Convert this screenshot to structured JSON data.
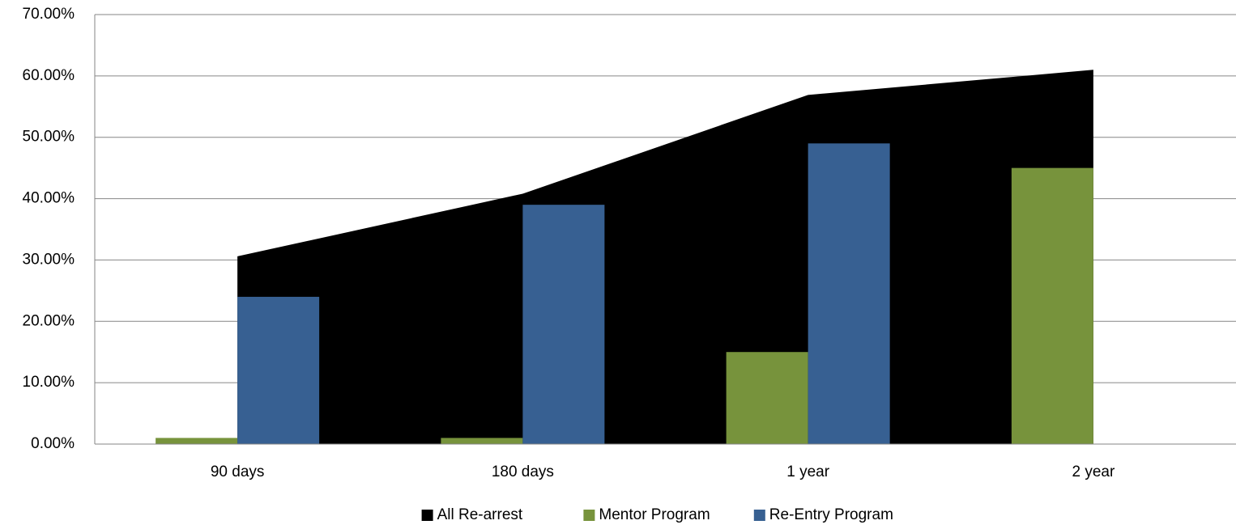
{
  "chart_data": {
    "type": "bar",
    "categories": [
      "90 days",
      "180 days",
      "1 year",
      "2 year"
    ],
    "series": [
      {
        "name": "All Re-arrest",
        "type": "area",
        "color": "#000000",
        "values": [
          30.6,
          40.8,
          56.9,
          61.0
        ]
      },
      {
        "name": "Mentor Program",
        "color": "#77933c",
        "values": [
          1,
          1,
          15,
          45
        ]
      },
      {
        "name": "Re-Entry Program",
        "color": "#376092",
        "values": [
          24,
          39,
          49,
          null
        ]
      }
    ],
    "ylim": [
      0,
      70
    ],
    "yticks": [
      {
        "value": 0,
        "label": "0.00%"
      },
      {
        "value": 10,
        "label": "10.00%"
      },
      {
        "value": 20,
        "label": "20.00%"
      },
      {
        "value": 30,
        "label": "30.00%"
      },
      {
        "value": 40,
        "label": "40.00%"
      },
      {
        "value": 50,
        "label": "50.00%"
      },
      {
        "value": 60,
        "label": "60.00%"
      },
      {
        "value": 70,
        "label": "70.00%"
      }
    ],
    "grid": true,
    "legend": "bottom"
  }
}
